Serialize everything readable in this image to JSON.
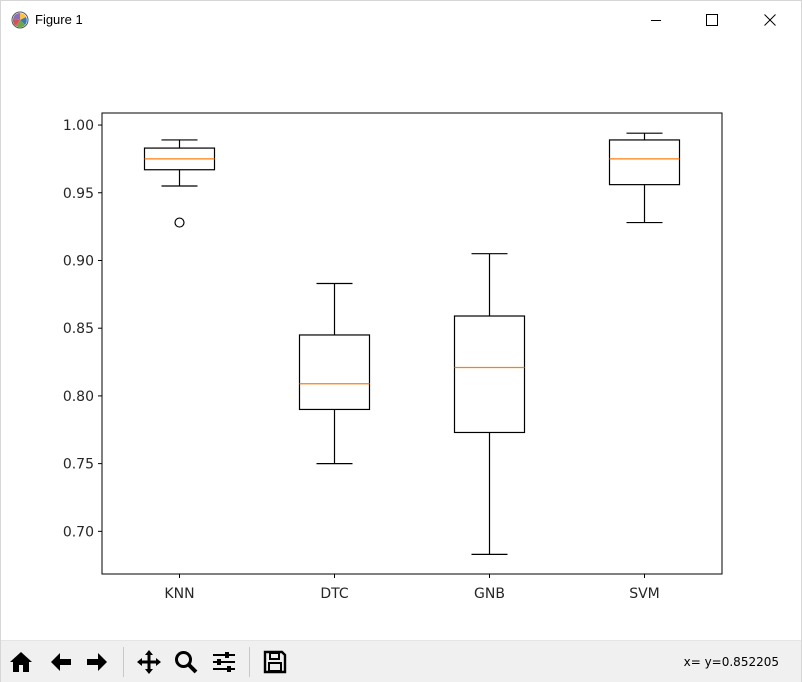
{
  "window": {
    "title": "Figure 1",
    "icons": {
      "app": "matplotlib-logo-icon",
      "minimize": "minimize-icon",
      "maximize": "maximize-icon",
      "close": "close-icon"
    }
  },
  "toolbar": {
    "buttons": [
      {
        "name": "home-button",
        "icon": "home-icon"
      },
      {
        "name": "back-button",
        "icon": "arrow-left-icon"
      },
      {
        "name": "forward-button",
        "icon": "arrow-right-icon"
      },
      {
        "name": "pan-button",
        "icon": "move-icon"
      },
      {
        "name": "zoom-button",
        "icon": "magnifier-icon"
      },
      {
        "name": "configure-subplots-button",
        "icon": "sliders-icon"
      },
      {
        "name": "save-button",
        "icon": "floppy-disk-icon"
      }
    ],
    "coords_text": "x= y=0.852205"
  },
  "chart_data": {
    "type": "boxplot",
    "categories": [
      "KNN",
      "DTC",
      "GNB",
      "SVM"
    ],
    "boxes": [
      {
        "label": "KNN",
        "whisker_low": 0.955,
        "q1": 0.967,
        "median": 0.975,
        "q3": 0.983,
        "whisker_high": 0.989,
        "outliers": [
          0.928
        ]
      },
      {
        "label": "DTC",
        "whisker_low": 0.75,
        "q1": 0.79,
        "median": 0.809,
        "q3": 0.845,
        "whisker_high": 0.883,
        "outliers": []
      },
      {
        "label": "GNB",
        "whisker_low": 0.683,
        "q1": 0.773,
        "median": 0.821,
        "q3": 0.859,
        "whisker_high": 0.905,
        "outliers": []
      },
      {
        "label": "SVM",
        "whisker_low": 0.928,
        "q1": 0.956,
        "median": 0.975,
        "q3": 0.989,
        "whisker_high": 0.994,
        "outliers": []
      }
    ],
    "yticks": [
      "0.70",
      "0.75",
      "0.80",
      "0.85",
      "0.90",
      "0.95",
      "1.00"
    ],
    "ylim": [
      0.6685,
      1.0089
    ],
    "grid": false,
    "colors": {
      "box": "#000000",
      "median": "#ff7f0e",
      "axes": "#000000",
      "text": "#262626"
    }
  }
}
